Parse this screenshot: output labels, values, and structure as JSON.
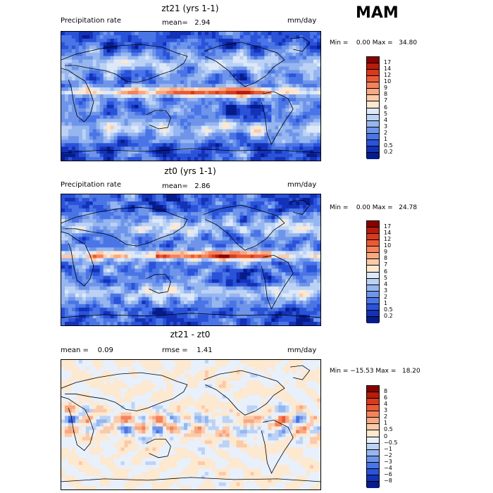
{
  "season": "MAM",
  "panels": [
    {
      "id": "top",
      "title": "zt21 (yrs 1-1)",
      "left_label": "Precipitation rate",
      "stat1": "mean=   2.94",
      "stat2": "",
      "units": "mm/day",
      "minmax": "Min =    0.00 Max =   34.80",
      "colorbar": {
        "labels": [
          "17",
          "14",
          "12",
          "10",
          "9",
          "8",
          "7",
          "6",
          "5",
          "4",
          "3",
          "2",
          "1",
          "0.5",
          "0.2"
        ],
        "colors": [
          "#8a0000",
          "#b71c0c",
          "#d83a1c",
          "#ea5b35",
          "#f4835c",
          "#f8a883",
          "#fbcaa9",
          "#fde8d0",
          "#dde8f8",
          "#bcd2f5",
          "#96b6ef",
          "#6f95ea",
          "#4a75e6",
          "#2a53d9",
          "#1432b8",
          "#061c8c"
        ]
      },
      "kind": "precip",
      "seed": 11
    },
    {
      "id": "middle",
      "title": "zt0 (yrs 1-1)",
      "left_label": "Precipitation rate",
      "stat1": "mean=   2.86",
      "stat2": "",
      "units": "mm/day",
      "minmax": "Min =    0.00 Max =   24.78",
      "colorbar": {
        "labels": [
          "17",
          "14",
          "12",
          "10",
          "9",
          "8",
          "7",
          "6",
          "5",
          "4",
          "3",
          "2",
          "1",
          "0.5",
          "0.2"
        ],
        "colors": [
          "#8a0000",
          "#b71c0c",
          "#d83a1c",
          "#ea5b35",
          "#f4835c",
          "#f8a883",
          "#fbcaa9",
          "#fde8d0",
          "#dde8f8",
          "#bcd2f5",
          "#96b6ef",
          "#6f95ea",
          "#4a75e6",
          "#2a53d9",
          "#1432b8",
          "#061c8c"
        ]
      },
      "kind": "precip",
      "seed": 29
    },
    {
      "id": "bottom",
      "title": "zt21 - zt0",
      "left_label": "mean =    0.09",
      "stat1": "rmse =    1.41",
      "stat2": "",
      "units": "mm/day",
      "minmax": "Min = −15.53 Max =   18.20",
      "colorbar": {
        "labels": [
          "8",
          "6",
          "4",
          "3",
          "2",
          "1",
          "0.5",
          "0",
          "−0.5",
          "−1",
          "−2",
          "−3",
          "−4",
          "−6",
          "−8"
        ],
        "colors": [
          "#8a0000",
          "#b71c0c",
          "#d83a1c",
          "#ea5b35",
          "#f4835c",
          "#f8a883",
          "#fbcaa9",
          "#fde8d0",
          "#e8f0fb",
          "#bcd2f5",
          "#96b6ef",
          "#6f95ea",
          "#4a75e6",
          "#2a53d9",
          "#1432b8",
          "#061c8c"
        ]
      },
      "kind": "diff",
      "seed": 47
    }
  ]
}
